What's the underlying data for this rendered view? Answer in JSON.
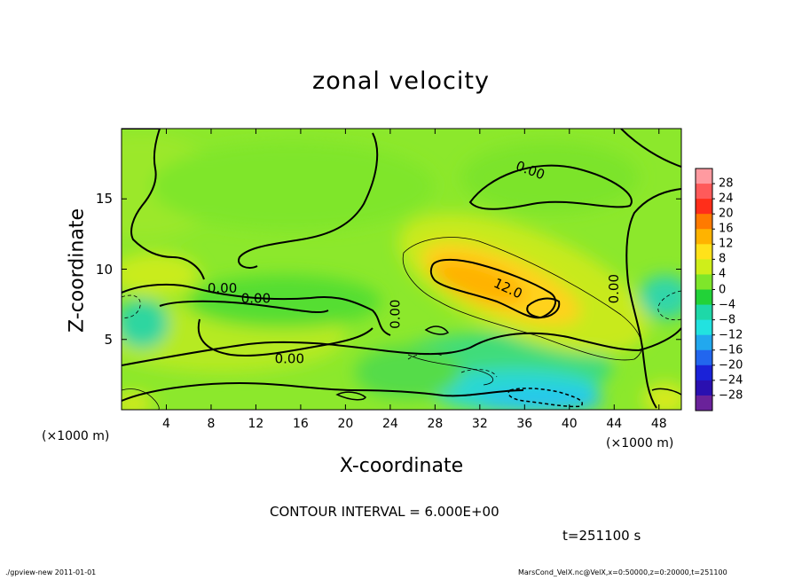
{
  "chart_data": {
    "type": "heatmap",
    "subtype": "filled-contour",
    "title": "zonal velocity",
    "xlabel": "X-coordinate",
    "ylabel": "Z-coordinate",
    "x_unit_left": "(×1000 m)",
    "x_unit_right": "(×1000 m)",
    "xlim": [
      0,
      50
    ],
    "ylim": [
      0,
      20
    ],
    "x_ticks": [
      "4",
      "8",
      "12",
      "16",
      "20",
      "24",
      "28",
      "32",
      "36",
      "40",
      "44",
      "48"
    ],
    "x_tick_values": [
      4,
      8,
      12,
      16,
      20,
      24,
      28,
      32,
      36,
      40,
      44,
      48
    ],
    "y_ticks": [
      "5",
      "10",
      "15"
    ],
    "y_tick_values": [
      5,
      10,
      15
    ],
    "contour_interval_text": "CONTOUR INTERVAL = 6.000E+00",
    "time_text": "t=251100 s",
    "contour_labels": [
      {
        "text": "0.00",
        "x": 36.5,
        "y": 17.0
      },
      {
        "text": "0.00",
        "x": 9.0,
        "y": 8.6
      },
      {
        "text": "0.00",
        "x": 12.0,
        "y": 7.9
      },
      {
        "text": "0.00",
        "x": 15.0,
        "y": 3.6
      },
      {
        "text": "0.00",
        "x": 24.5,
        "y": 6.8
      },
      {
        "text": "12.0",
        "x": 34.5,
        "y": 8.6
      },
      {
        "text": "0.00",
        "x": 44.0,
        "y": 8.6
      }
    ],
    "features": [
      {
        "kind": "max",
        "center": [
          34,
          8.5
        ],
        "value_range": [
          12,
          18
        ]
      },
      {
        "kind": "min",
        "center": [
          36,
          1.2
        ],
        "value_range": [
          -10,
          -6
        ]
      },
      {
        "kind": "min",
        "center": [
          1.5,
          6.5
        ],
        "value_range": [
          -6,
          -2
        ]
      },
      {
        "kind": "min",
        "center": [
          48.5,
          7.5
        ],
        "value_range": [
          -6,
          -2
        ]
      },
      {
        "kind": "max",
        "center": [
          2,
          9.5
        ],
        "value_range": [
          4,
          8
        ]
      },
      {
        "kind": "max",
        "center": [
          8,
          6
        ],
        "value_range": [
          4,
          8
        ]
      },
      {
        "kind": "max",
        "center": [
          49,
          1
        ],
        "value_range": [
          4,
          8
        ]
      }
    ],
    "colorbar": {
      "labels": [
        "28",
        "24",
        "20",
        "16",
        "12",
        "8",
        "4",
        "0",
        "−4",
        "−8",
        "−12",
        "−16",
        "−20",
        "−24",
        "−28"
      ],
      "colors": [
        "#ff9aa0",
        "#ff5a5a",
        "#ff2e1a",
        "#ff7a00",
        "#ffb300",
        "#ffe21a",
        "#cfee1a",
        "#7fe62a",
        "#22d238",
        "#1ed8a8",
        "#22e2e0",
        "#22a8ee",
        "#2266ee",
        "#1a22d8",
        "#2a10b0",
        "#6a229a"
      ]
    }
  },
  "footer": {
    "left": "./gpview-new  2011-01-01",
    "right": "MarsCond_VelX.nc@VelX,x=0:50000,z=0:20000,t=251100"
  }
}
